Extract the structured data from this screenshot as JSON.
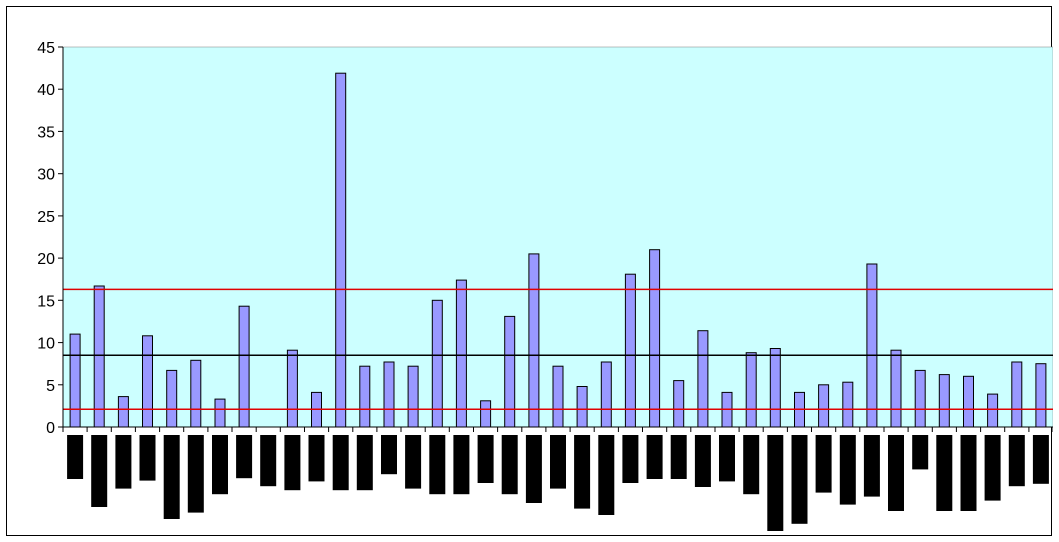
{
  "chart_data": {
    "type": "bar",
    "title": "",
    "xlabel": "",
    "ylabel": "",
    "ylim": [
      0,
      45
    ],
    "yticks": [
      0,
      5,
      10,
      15,
      20,
      25,
      30,
      35,
      40,
      45
    ],
    "grid": false,
    "legend": "none",
    "values": [
      11.0,
      16.7,
      3.6,
      10.8,
      6.7,
      7.9,
      3.3,
      14.3,
      0,
      9.1,
      4.1,
      41.9,
      7.2,
      7.7,
      7.2,
      15.0,
      17.4,
      3.1,
      13.1,
      20.5,
      7.2,
      4.8,
      7.7,
      18.1,
      21.0,
      5.5,
      11.4,
      4.1,
      8.8,
      9.3,
      4.1,
      5.0,
      5.3,
      19.3,
      9.1,
      6.7,
      6.2,
      6.0,
      3.9,
      7.7,
      7.5
    ],
    "reference_lines": [
      {
        "value": 16.3,
        "color": "#e00000"
      },
      {
        "value": 8.5,
        "color": "#000000"
      },
      {
        "value": 2.1,
        "color": "#e00000"
      }
    ],
    "secondary_bars": [
      0.55,
      0.9,
      0.67,
      0.57,
      1.05,
      0.97,
      0.74,
      0.54,
      0.64,
      0.69,
      0.58,
      0.69,
      0.69,
      0.49,
      0.67,
      0.74,
      0.74,
      0.6,
      0.74,
      0.85,
      0.67,
      0.92,
      1.0,
      0.6,
      0.55,
      0.55,
      0.65,
      0.58,
      0.74,
      1.2,
      1.11,
      0.72,
      0.87,
      0.77,
      0.95,
      0.43,
      0.95,
      0.95,
      0.82,
      0.64,
      0.61
    ],
    "colors": {
      "plot_background": "#ccffff",
      "bar_fill": "#9999ff",
      "bar_stroke": "#000000",
      "secondary_fill": "#000000"
    }
  }
}
